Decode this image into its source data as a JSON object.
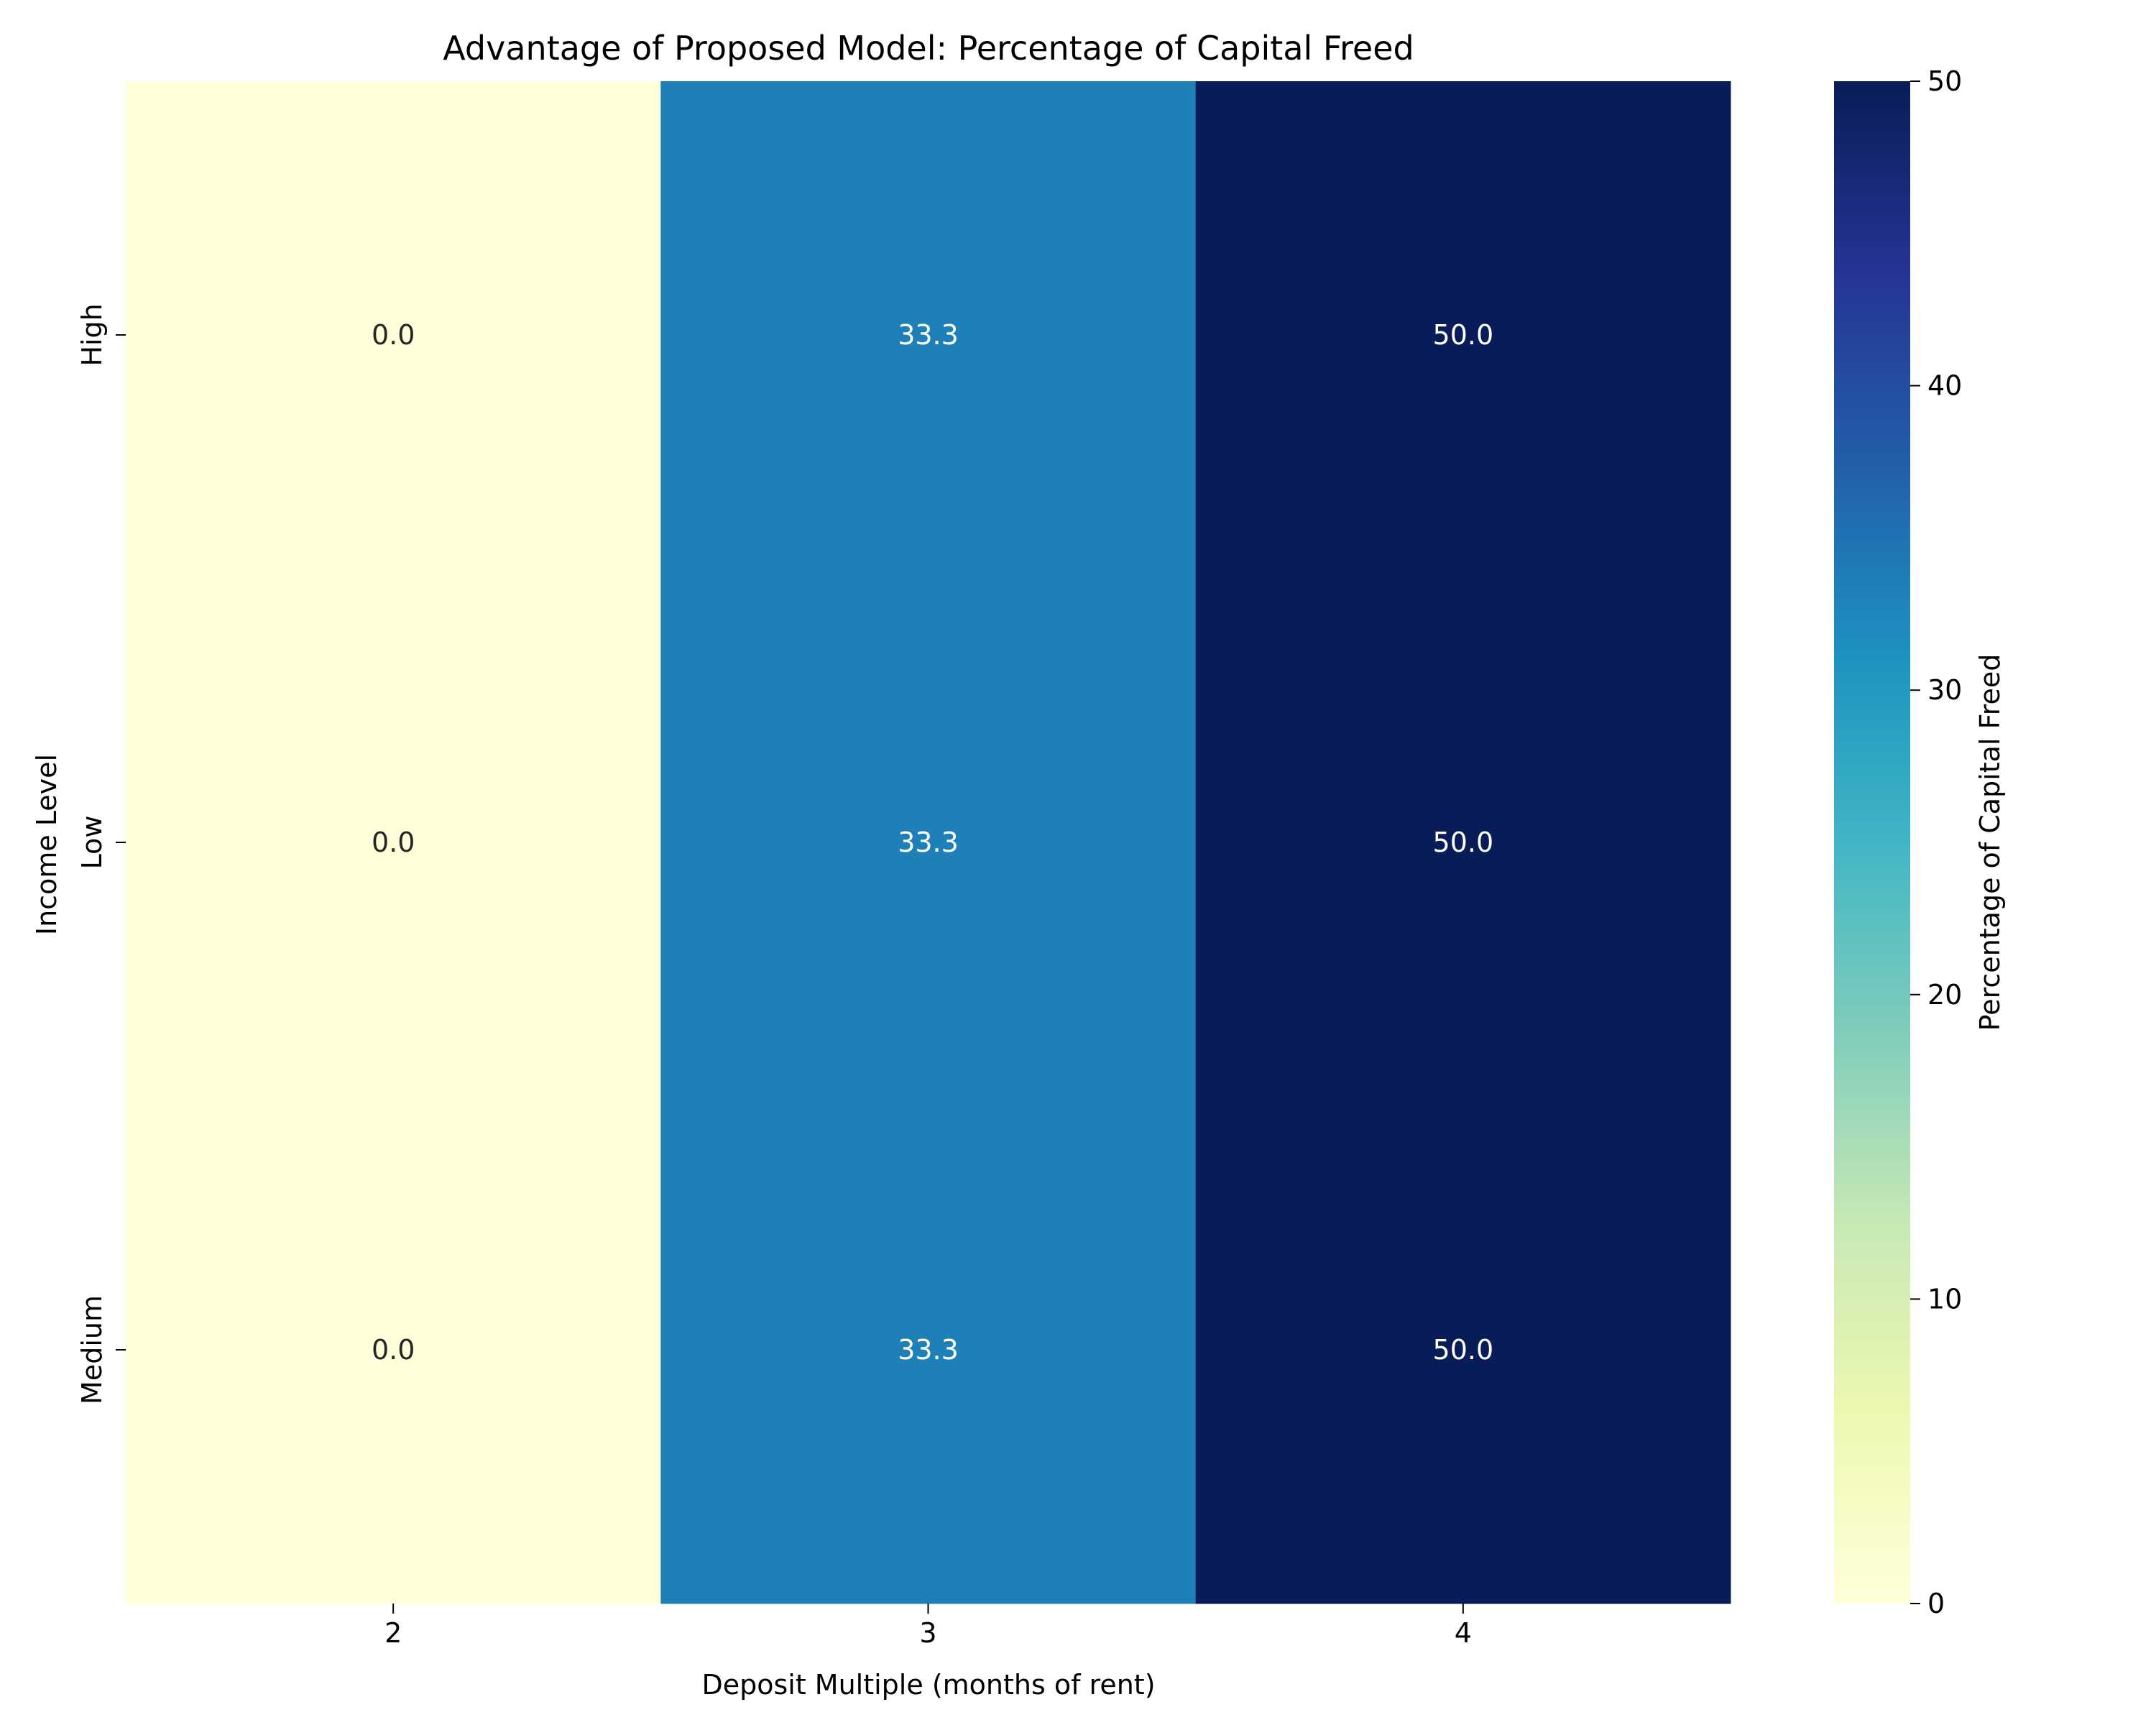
{
  "chart_data": {
    "type": "heatmap",
    "title": "Advantage of Proposed Model: Percentage of Capital Freed",
    "xlabel": "Deposit Multiple (months of rent)",
    "ylabel": "Income Level",
    "x_categories": [
      "2",
      "3",
      "4"
    ],
    "y_categories": [
      "High",
      "Low",
      "Medium"
    ],
    "values": [
      [
        0.0,
        33.3,
        50.0
      ],
      [
        0.0,
        33.3,
        50.0
      ],
      [
        0.0,
        33.3,
        50.0
      ]
    ],
    "cell_labels": [
      [
        "0.0",
        "33.3",
        "50.0"
      ],
      [
        "0.0",
        "33.3",
        "50.0"
      ],
      [
        "0.0",
        "33.3",
        "50.0"
      ]
    ],
    "colormap": "YlGnBu",
    "vmin": 0,
    "vmax": 50,
    "colorbar": {
      "label": "Percentage of Capital Freed",
      "ticks": [
        "0",
        "10",
        "20",
        "30",
        "40",
        "50"
      ]
    },
    "grid": false,
    "legend": "none"
  }
}
